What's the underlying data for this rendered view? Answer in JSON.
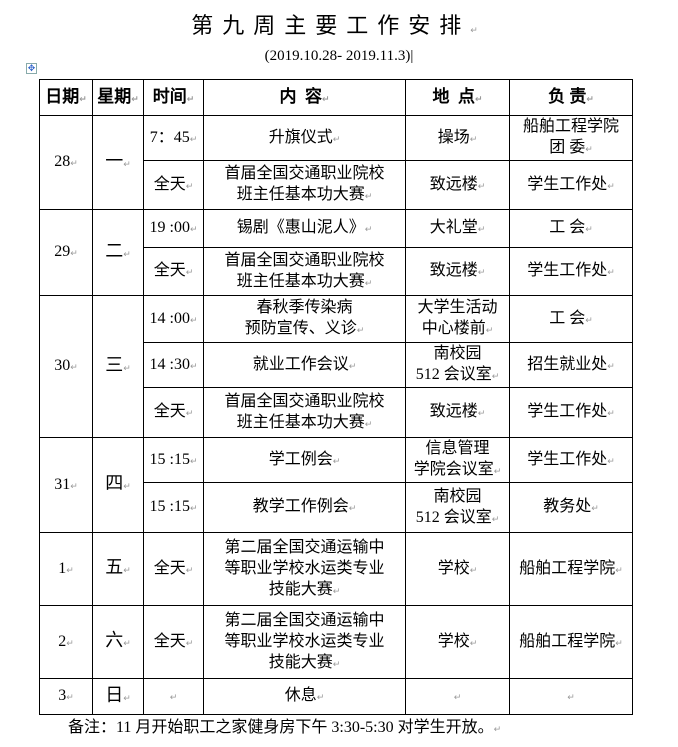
{
  "title": "第九周主要工作安排",
  "subtitle": "(2019.10.28- 2019.11.3)",
  "headers": [
    "日期",
    "星期",
    "时间",
    "内  容",
    "地  点",
    "负 责"
  ],
  "days": [
    {
      "date": "28",
      "weekday": "一",
      "events": [
        {
          "time": "7：45",
          "content": "升旗仪式",
          "place": "操场",
          "owner": "船舶工程学院\n团  委"
        },
        {
          "time": "全天",
          "content": "首届全国交通职业院校\n班主任基本功大赛",
          "place": "致远楼",
          "owner": "学生工作处"
        }
      ]
    },
    {
      "date": "29",
      "weekday": "二",
      "events": [
        {
          "time": "19 :00",
          "content": "锡剧《惠山泥人》",
          "place": "大礼堂",
          "owner": "工  会"
        },
        {
          "time": "全天",
          "content": "首届全国交通职业院校\n班主任基本功大赛",
          "place": "致远楼",
          "owner": "学生工作处"
        }
      ]
    },
    {
      "date": "30",
      "weekday": "三",
      "events": [
        {
          "time": "14 :00",
          "content": "春秋季传染病\n预防宣传、义诊",
          "place": "大学生活动\n中心楼前",
          "owner": "工  会"
        },
        {
          "time": "14 :30",
          "content": "就业工作会议",
          "place": "南校园\n512 会议室",
          "owner": "招生就业处"
        },
        {
          "time": "全天",
          "content": "首届全国交通职业院校\n班主任基本功大赛",
          "place": "致远楼",
          "owner": "学生工作处"
        }
      ]
    },
    {
      "date": "31",
      "weekday": "四",
      "events": [
        {
          "time": "15 :15",
          "content": "学工例会",
          "place": "信息管理\n学院会议室",
          "owner": "学生工作处"
        },
        {
          "time": "15 :15",
          "content": "教学工作例会",
          "place": "南校园\n512 会议室",
          "owner": "教务处"
        }
      ]
    },
    {
      "date": "1",
      "weekday": "五",
      "events": [
        {
          "time": "全天",
          "content": "第二届全国交通运输中\n等职业学校水运类专业\n技能大赛",
          "place": "学校",
          "owner": "船舶工程学院"
        }
      ]
    },
    {
      "date": "2",
      "weekday": "六",
      "events": [
        {
          "time": "全天",
          "content": "第二届全国交通运输中\n等职业学校水运类专业\n技能大赛",
          "place": "学校",
          "owner": "船舶工程学院"
        }
      ]
    },
    {
      "date": "3",
      "weekday": "日",
      "events": [
        {
          "time": "",
          "content": "休息",
          "place": "",
          "owner": ""
        }
      ]
    }
  ],
  "note": "备注：11 月开始职工之家健身房下午 3:30-5:30 对学生开放。"
}
